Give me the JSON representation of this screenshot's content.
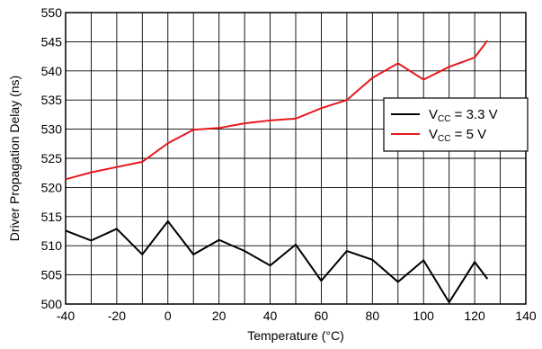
{
  "chart_data": {
    "type": "line",
    "xlabel": "Temperature (°C)",
    "ylabel": "Driver Propagation Delay (ns)",
    "xlim": [
      -40,
      140
    ],
    "ylim": [
      500,
      550
    ],
    "xticks": [
      -40,
      -20,
      0,
      20,
      40,
      60,
      80,
      100,
      120,
      140
    ],
    "yticks": [
      500,
      505,
      510,
      515,
      520,
      525,
      530,
      535,
      540,
      545,
      550
    ],
    "x_grid_step": 10,
    "y_grid_step": 5,
    "grid": true,
    "legend_placement": "right",
    "series": [
      {
        "name_main": "V",
        "name_sub": "CC",
        "name_rest": " = 3.3 V",
        "color": "#000000",
        "x": [
          -40,
          -30,
          -20,
          -10,
          0,
          10,
          20,
          30,
          40,
          50,
          60,
          70,
          80,
          90,
          100,
          110,
          120,
          125
        ],
        "y": [
          512.6,
          510.9,
          512.9,
          508.5,
          514.2,
          508.5,
          511.0,
          509.1,
          506.6,
          510.2,
          504.0,
          509.1,
          507.6,
          503.8,
          507.5,
          500.3,
          507.2,
          504.3
        ]
      },
      {
        "name_main": "V",
        "name_sub": "CC",
        "name_rest": " = 5 V",
        "color": "#e8191f",
        "x": [
          -40,
          -30,
          -20,
          -10,
          0,
          10,
          20,
          30,
          40,
          50,
          60,
          70,
          80,
          90,
          100,
          110,
          120,
          125
        ],
        "y": [
          521.4,
          522.6,
          523.5,
          524.4,
          527.6,
          529.9,
          530.2,
          531.0,
          531.5,
          531.8,
          533.6,
          535.0,
          538.8,
          541.3,
          538.5,
          540.7,
          542.3,
          545.2
        ]
      }
    ]
  }
}
